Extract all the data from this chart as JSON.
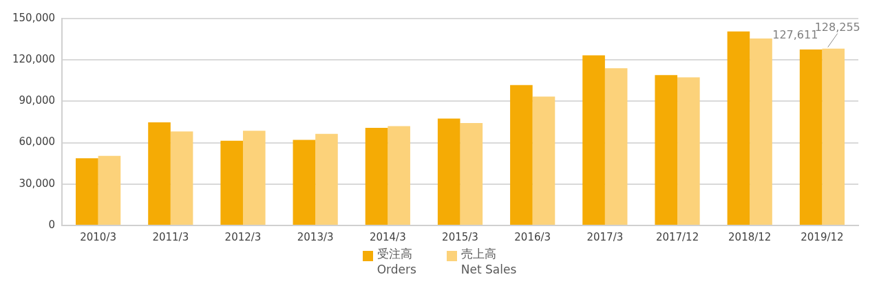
{
  "chart_data": {
    "type": "bar",
    "categories": [
      "2010/3",
      "2011/3",
      "2012/3",
      "2013/3",
      "2014/3",
      "2015/3",
      "2016/3",
      "2017/3",
      "2017/12",
      "2018/12",
      "2019/12"
    ],
    "series": [
      {
        "name": "受注高\nOrders",
        "color": "#f5ab05",
        "values": [
          48700,
          74700,
          61400,
          62000,
          70800,
          77500,
          101800,
          123400,
          109000,
          140600,
          127611
        ],
        "value_labels": [
          null,
          null,
          null,
          null,
          null,
          null,
          null,
          null,
          null,
          null,
          "127,611"
        ]
      },
      {
        "name": "売上高\nNet Sales",
        "color": "#fcd27a",
        "values": [
          50400,
          68100,
          68600,
          66400,
          72000,
          74200,
          93500,
          114000,
          107400,
          135600,
          128255
        ],
        "value_labels": [
          null,
          null,
          null,
          null,
          null,
          null,
          null,
          null,
          null,
          null,
          "128,255"
        ]
      }
    ],
    "ylim": [
      0,
      150000
    ],
    "yticks": [
      0,
      {
        "value": 30000,
        "label": "30,000"
      },
      {
        "value": 60000,
        "label": "60,000"
      },
      {
        "value": 90000,
        "label": "90,000"
      },
      {
        "value": 120000,
        "label": "120,000"
      },
      {
        "value": 150000,
        "label": "150,000"
      }
    ],
    "grid": "y",
    "legend": "bottom"
  }
}
